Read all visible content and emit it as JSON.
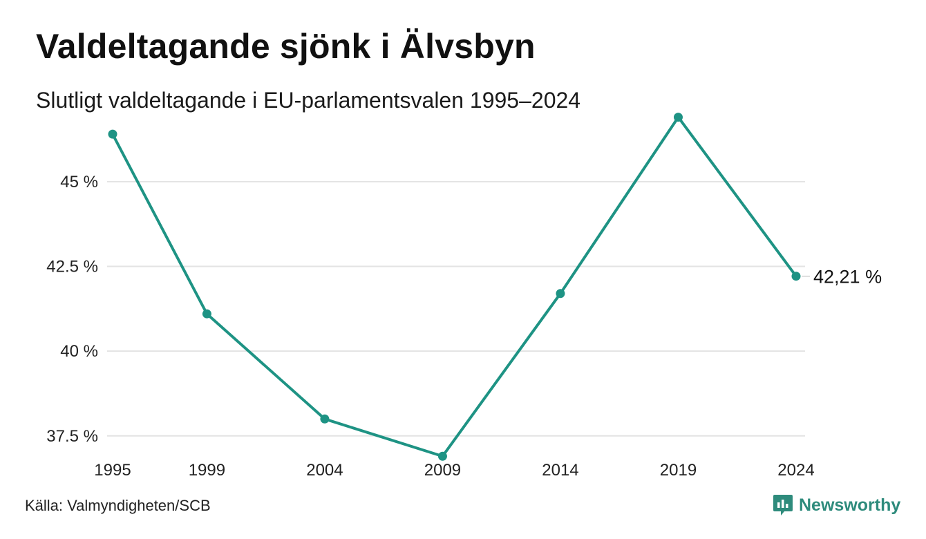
{
  "title": "Valdeltagande sjönk i Älvsbyn",
  "subtitle": "Slutligt valdeltagande i EU-parlamentsvalen 1995–2024",
  "source": "Källa: Valmyndigheten/SCB",
  "brand": {
    "name": "Newsworthy",
    "icon": "newsworthy-logo-icon",
    "color": "#2e8b7c"
  },
  "colors": {
    "line": "#1e9384",
    "grid": "#e3e3e3"
  },
  "chart_data": {
    "type": "line",
    "title": "Valdeltagande sjönk i Älvsbyn",
    "subtitle": "Slutligt valdeltagande i EU-parlamentsvalen 1995–2024",
    "xlabel": "",
    "ylabel": "",
    "x": [
      "1995",
      "1999",
      "2004",
      "2009",
      "2014",
      "2019",
      "2024"
    ],
    "series": [
      {
        "values": [
          46.4,
          41.1,
          38.0,
          36.9,
          41.7,
          46.9,
          42.21
        ]
      }
    ],
    "y_ticks": [
      37.5,
      40,
      42.5,
      45
    ],
    "y_tick_labels": [
      "37.5 %",
      "40 %",
      "42.5 %",
      "45 %"
    ],
    "ylim": [
      35.6,
      47.3
    ],
    "grid": "horizontal",
    "end_label": "42,21 %"
  }
}
